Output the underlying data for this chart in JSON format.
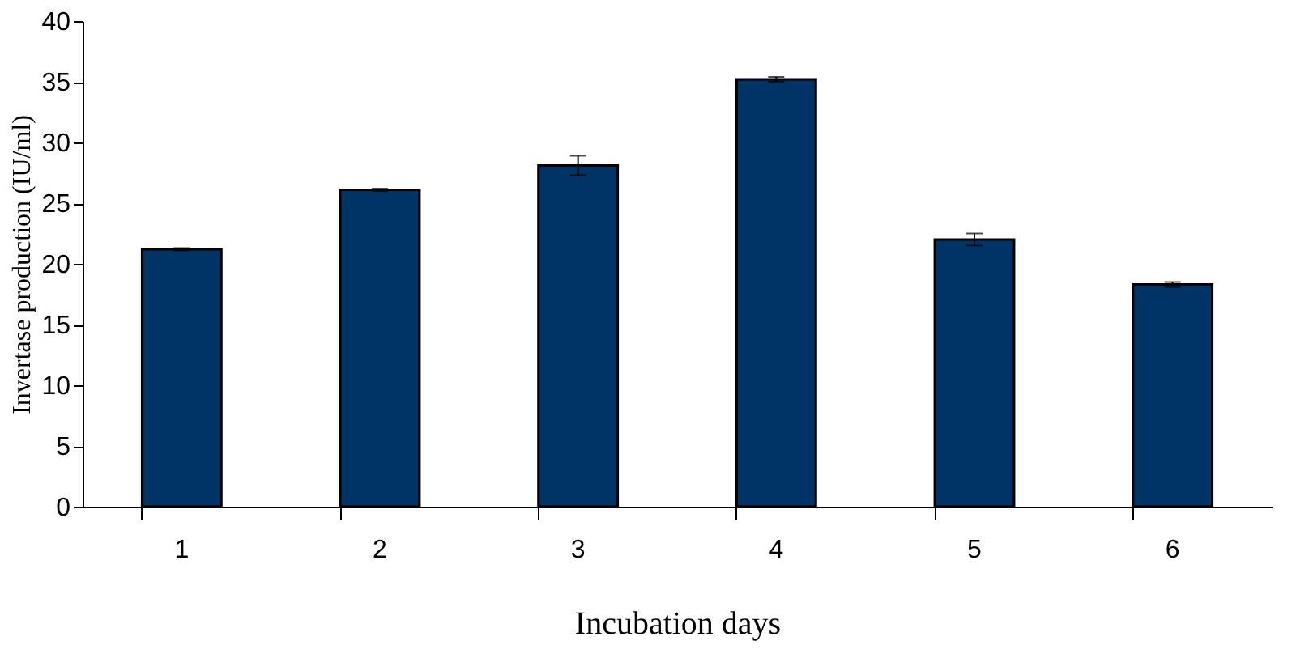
{
  "chart_data": {
    "type": "bar",
    "xlabel": "Incubation days",
    "ylabel": "Invertase production (IU/ml)",
    "categories": [
      "1",
      "2",
      "3",
      "4",
      "5",
      "6"
    ],
    "values": [
      21.2,
      26.1,
      28.1,
      35.2,
      22.0,
      18.3
    ],
    "errors": [
      0.1,
      0.1,
      0.8,
      0.2,
      0.5,
      0.2
    ],
    "color": "#003366",
    "ylim": [
      0,
      40
    ],
    "yticks": [
      0,
      5,
      10,
      15,
      20,
      25,
      30,
      35,
      40
    ],
    "grid": false
  }
}
